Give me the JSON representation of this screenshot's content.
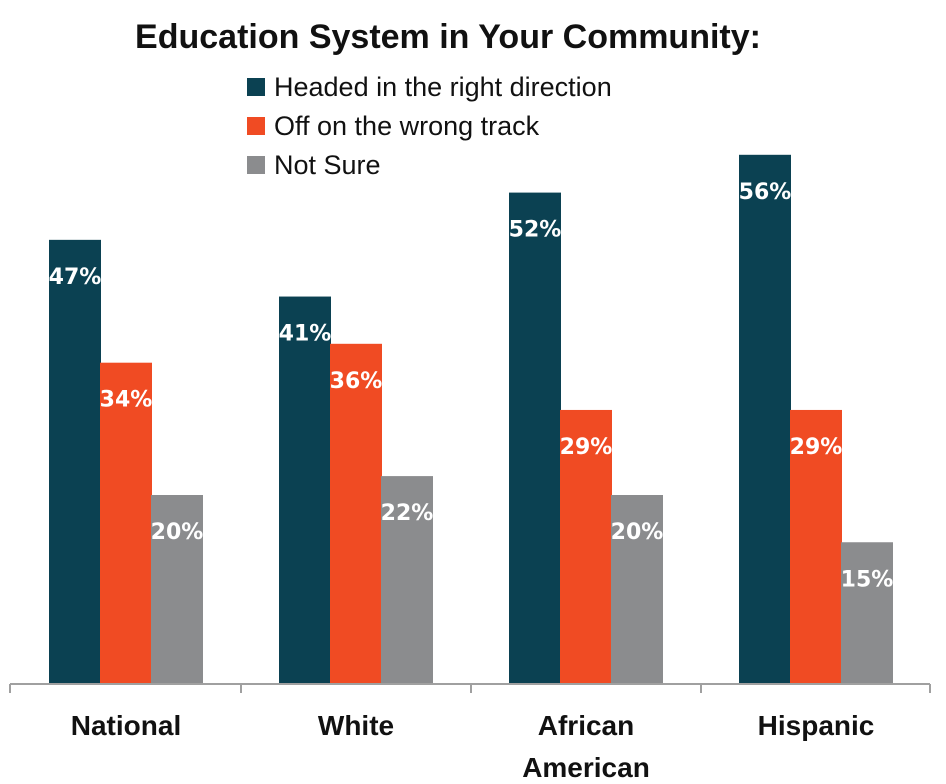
{
  "chart_data": {
    "type": "bar",
    "title": "Education  System in Your Community:",
    "categories": [
      [
        "National"
      ],
      [
        "White"
      ],
      [
        "African",
        "American"
      ],
      [
        "Hispanic"
      ]
    ],
    "series": [
      {
        "name": "Headed in the right direction",
        "color": "#0b4152",
        "values": [
          47,
          41,
          52,
          56
        ],
        "labels": [
          "47%",
          "41%",
          "52%",
          "56%"
        ]
      },
      {
        "name": "Off on the wrong track",
        "color": "#f04b23",
        "values": [
          34,
          36,
          29,
          29
        ],
        "labels": [
          "34%",
          "36%",
          "29%",
          "29%"
        ]
      },
      {
        "name": "Not Sure",
        "color": "#8b8c8e",
        "values": [
          20,
          22,
          20,
          15
        ],
        "labels": [
          "20%",
          "22%",
          "20%",
          "15%"
        ]
      }
    ],
    "xlabel": "",
    "ylabel": "",
    "ylim": [
      0,
      60
    ],
    "grid": false,
    "legend": "top-center"
  }
}
